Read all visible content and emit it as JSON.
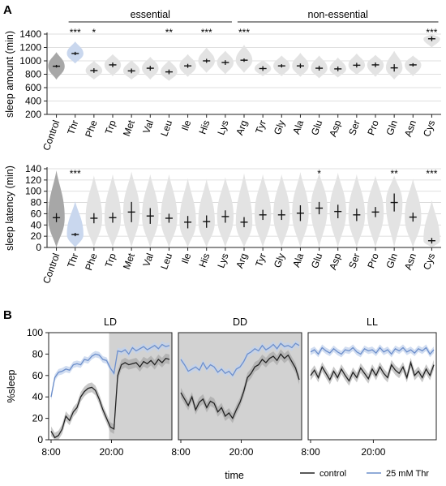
{
  "panels": {
    "A": "A",
    "B": "B"
  },
  "colors": {
    "control_violin": "#a7a7a7",
    "thr_violin": "#c9d7ee",
    "other_violin": "#e3e3e3",
    "grid": "#d4d4d4",
    "dark_shade": "#d2d2d2",
    "control_line": "#222222",
    "thr_line": "#6d8fcb",
    "control_band": "#9a9a9a",
    "thr_band": "#c2d1ec"
  },
  "chart_data": [
    {
      "type": "violin",
      "id": "sleep_amount",
      "title": "",
      "group_labels": [
        "essential",
        "non-essential"
      ],
      "groups": [
        {
          "label": "essential",
          "categories": [
            "Thr",
            "Phe",
            "Trp",
            "Met",
            "Val",
            "Leu",
            "Ile",
            "His",
            "Lys"
          ]
        },
        {
          "label": "non-essential",
          "categories": [
            "Arg",
            "Tyr",
            "Gly",
            "Ala",
            "Glu",
            "Asp",
            "Ser",
            "Pro",
            "Gln",
            "Asn",
            "Cys"
          ]
        }
      ],
      "categories": [
        "Control",
        "Thr",
        "Phe",
        "Trp",
        "Met",
        "Val",
        "Leu",
        "Ile",
        "His",
        "Lys",
        "Arg",
        "Tyr",
        "Gly",
        "Ala",
        "Glu",
        "Asp",
        "Ser",
        "Pro",
        "Gln",
        "Asn",
        "Cys"
      ],
      "ylabel": "sleep amount (min)",
      "ylim": [
        200,
        1400
      ],
      "yticks": [
        200,
        400,
        600,
        800,
        1000,
        1200,
        1400
      ],
      "grid": true,
      "medians": [
        920,
        1110,
        855,
        940,
        850,
        890,
        835,
        925,
        1000,
        975,
        1010,
        885,
        925,
        925,
        890,
        880,
        935,
        940,
        895,
        940,
        1330
      ],
      "error": [
        20,
        25,
        35,
        35,
        35,
        35,
        35,
        30,
        30,
        35,
        25,
        35,
        25,
        35,
        35,
        35,
        35,
        35,
        55,
        25,
        35
      ],
      "violin_range": [
        [
          720,
          1130
        ],
        [
          960,
          1290
        ],
        [
          720,
          1000
        ],
        [
          770,
          1100
        ],
        [
          720,
          1010
        ],
        [
          720,
          1060
        ],
        [
          700,
          1010
        ],
        [
          760,
          1100
        ],
        [
          820,
          1200
        ],
        [
          800,
          1150
        ],
        [
          820,
          1240
        ],
        [
          770,
          1010
        ],
        [
          770,
          1080
        ],
        [
          760,
          1120
        ],
        [
          740,
          1080
        ],
        [
          750,
          1050
        ],
        [
          790,
          1110
        ],
        [
          760,
          1090
        ],
        [
          720,
          1150
        ],
        [
          770,
          1080
        ],
        [
          1200,
          1400
        ]
      ],
      "significance": [
        "",
        "***",
        "*",
        "",
        "",
        "",
        "**",
        "",
        "***",
        "",
        "***",
        "",
        "",
        "",
        "",
        "",
        "",
        "",
        "",
        "",
        "***"
      ]
    },
    {
      "type": "violin",
      "id": "sleep_latency",
      "title": "",
      "categories": [
        "Control",
        "Thr",
        "Phe",
        "Trp",
        "Met",
        "Val",
        "Leu",
        "Ile",
        "His",
        "Lys",
        "Arg",
        "Tyr",
        "Gly",
        "Ala",
        "Glu",
        "Asp",
        "Ser",
        "Pro",
        "Gln",
        "Asn",
        "Cys"
      ],
      "ylabel": "sleep latency (min)",
      "ylim": [
        0,
        140
      ],
      "yticks": [
        0,
        20,
        40,
        60,
        80,
        100,
        120,
        140
      ],
      "grid": true,
      "medians": [
        53,
        23,
        52,
        53,
        63,
        56,
        52,
        45,
        46,
        55,
        45,
        58,
        58,
        61,
        70,
        64,
        58,
        63,
        80,
        54,
        12
      ],
      "error": [
        8,
        3,
        9,
        9,
        18,
        14,
        8,
        11,
        11,
        11,
        9,
        9,
        9,
        14,
        11,
        12,
        11,
        9,
        16,
        8,
        5
      ],
      "violin_range": [
        [
          0,
          137
        ],
        [
          0,
          82
        ],
        [
          0,
          128
        ],
        [
          0,
          130
        ],
        [
          0,
          135
        ],
        [
          0,
          130
        ],
        [
          0,
          130
        ],
        [
          0,
          123
        ],
        [
          0,
          122
        ],
        [
          0,
          125
        ],
        [
          0,
          132
        ],
        [
          0,
          130
        ],
        [
          0,
          130
        ],
        [
          0,
          134
        ],
        [
          0,
          133
        ],
        [
          0,
          133
        ],
        [
          0,
          130
        ],
        [
          0,
          128
        ],
        [
          0,
          128
        ],
        [
          0,
          122
        ],
        [
          0,
          84
        ]
      ],
      "significance": [
        "",
        "***",
        "",
        "",
        "",
        "",
        "",
        "",
        "",
        "",
        "",
        "",
        "",
        "",
        "*",
        "",
        "",
        "",
        "**",
        "",
        "***"
      ]
    },
    {
      "type": "line",
      "id": "sleep_timecourse",
      "ylabel": "%sleep",
      "xlabel": "time",
      "ylim": [
        0,
        100
      ],
      "yticks": [
        0,
        20,
        40,
        60,
        80,
        100
      ],
      "grid": false,
      "legend": "bottom-right",
      "legend_entries": [
        "control",
        "25 mM Thr"
      ],
      "panels": [
        {
          "title": "LD",
          "xticks": [
            "8:00",
            "20:00"
          ],
          "shaded": "second-half",
          "series": [
            {
              "name": "control",
              "values": [
                8,
                2,
                4,
                10,
                22,
                18,
                26,
                30,
                40,
                45,
                48,
                49,
                46,
                38,
                28,
                20,
                12,
                10,
                60,
                70,
                72,
                70,
                71,
                72,
                68,
                73,
                71,
                74,
                70,
                75,
                72,
                76,
                75
              ]
            },
            {
              "name": "25 mM Thr",
              "values": [
                40,
                58,
                63,
                64,
                66,
                65,
                70,
                71,
                70,
                75,
                74,
                78,
                80,
                79,
                75,
                74,
                67,
                62,
                83,
                82,
                84,
                80,
                86,
                83,
                85,
                87,
                84,
                86,
                88,
                85,
                89,
                87,
                88
              ]
            }
          ]
        },
        {
          "title": "DD",
          "xticks": [
            "8:00",
            "20:00"
          ],
          "shaded": "all",
          "series": [
            {
              "name": "control",
              "values": [
                44,
                38,
                32,
                40,
                28,
                35,
                38,
                30,
                36,
                34,
                26,
                30,
                22,
                25,
                20,
                28,
                35,
                45,
                58,
                62,
                68,
                70,
                75,
                72,
                76,
                78,
                74,
                80,
                76,
                79,
                73,
                67,
                56
              ]
            },
            {
              "name": "25 mM Thr",
              "values": [
                75,
                70,
                64,
                66,
                68,
                65,
                72,
                66,
                70,
                68,
                63,
                66,
                62,
                64,
                60,
                66,
                68,
                73,
                80,
                82,
                85,
                83,
                88,
                84,
                86,
                89,
                85,
                90,
                87,
                88,
                86,
                90,
                88
              ]
            }
          ]
        },
        {
          "title": "LL",
          "xticks": [
            "8:00",
            "20:00"
          ],
          "shaded": "none",
          "series": [
            {
              "name": "control",
              "values": [
                60,
                65,
                58,
                68,
                62,
                56,
                64,
                58,
                66,
                60,
                55,
                63,
                58,
                67,
                62,
                57,
                66,
                60,
                68,
                62,
                58,
                70,
                65,
                62,
                68,
                58,
                72,
                60,
                64,
                58,
                66,
                60,
                70
              ]
            },
            {
              "name": "25 mM Thr",
              "values": [
                82,
                84,
                80,
                86,
                83,
                81,
                85,
                82,
                80,
                84,
                83,
                86,
                82,
                80,
                85,
                83,
                84,
                81,
                86,
                82,
                84,
                80,
                85,
                83,
                86,
                82,
                84,
                81,
                85,
                83,
                86,
                80,
                84
              ]
            }
          ]
        }
      ]
    }
  ]
}
